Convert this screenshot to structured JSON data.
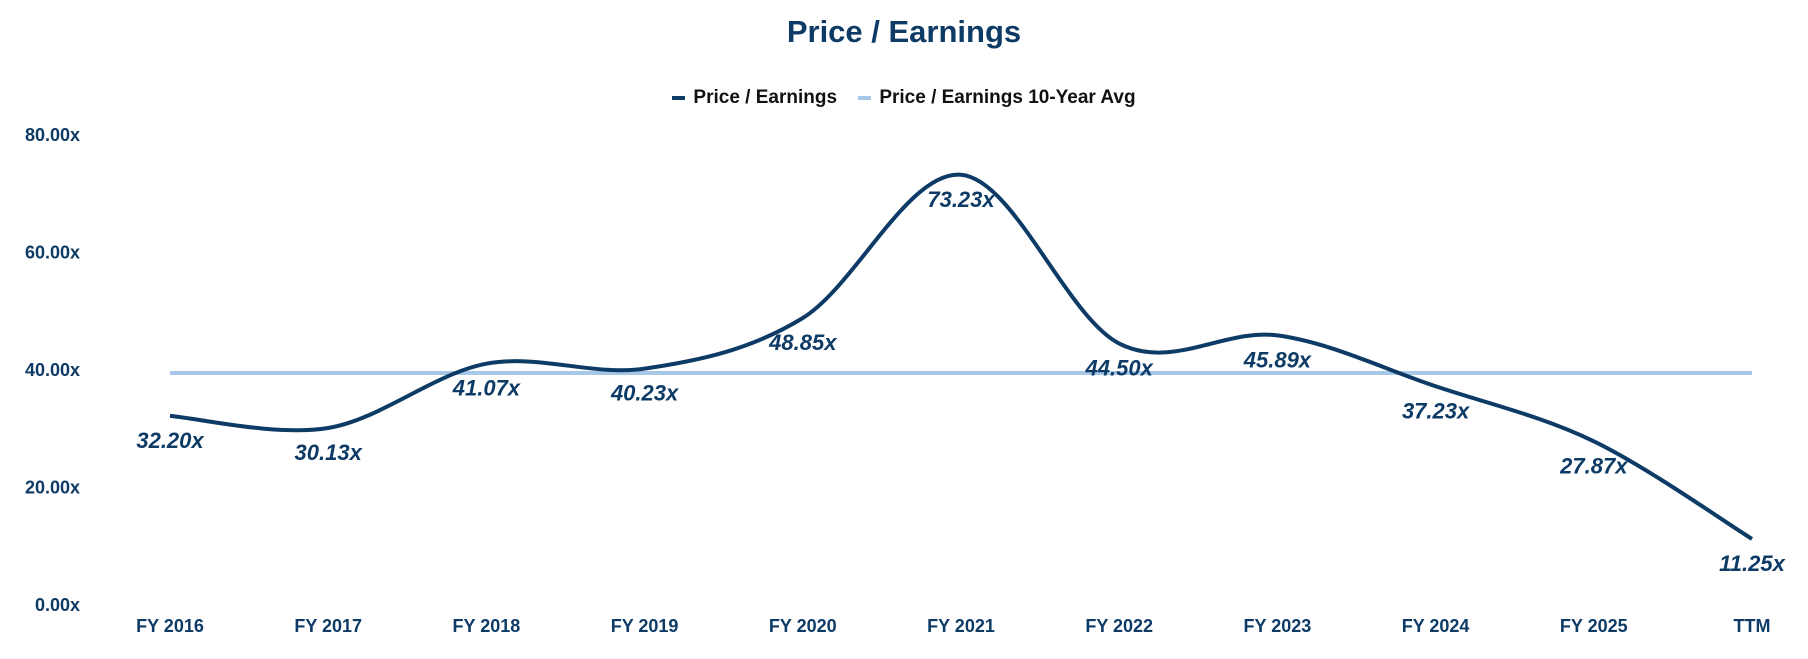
{
  "chart_data": {
    "type": "line",
    "title": "Price / Earnings",
    "categories": [
      "FY 2016",
      "FY 2017",
      "FY 2018",
      "FY 2019",
      "FY 2020",
      "FY 2021",
      "FY 2022",
      "FY 2023",
      "FY 2024",
      "FY 2025",
      "TTM"
    ],
    "series": [
      {
        "name": "Price / Earnings",
        "color": "#0d3b66",
        "values": [
          32.2,
          30.13,
          41.07,
          40.23,
          48.85,
          73.23,
          44.5,
          45.89,
          37.23,
          27.87,
          11.25
        ],
        "labels": [
          "32.20x",
          "30.13x",
          "41.07x",
          "40.23x",
          "48.85x",
          "73.23x",
          "44.50x",
          "45.89x",
          "37.23x",
          "27.87x",
          "11.25x"
        ]
      },
      {
        "name": "Price / Earnings 10-Year Avg",
        "color": "#a8c8e8",
        "values": [
          39.5,
          39.5,
          39.5,
          39.5,
          39.5,
          39.5,
          39.5,
          39.5,
          39.5,
          39.5,
          39.5
        ]
      }
    ],
    "yticks": [
      0,
      20,
      40,
      60,
      80
    ],
    "ytick_labels": [
      "0.00x",
      "20.00x",
      "40.00x",
      "60.00x",
      "80.00x"
    ],
    "ylim": [
      0,
      80
    ],
    "legend_position": "top-center",
    "grid": false
  }
}
